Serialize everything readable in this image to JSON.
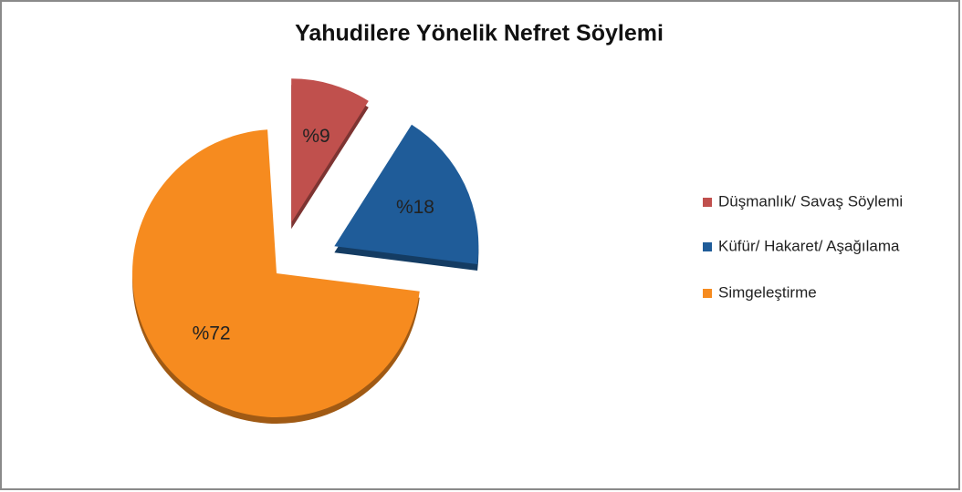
{
  "chart_data": {
    "type": "pie",
    "title": "Yahudilere Yönelik Nefret Söylemi",
    "categories": [
      "Düşmanlık/ Savaş Söylemi",
      "Küfür/ Hakaret/ Aşağılama",
      "Simgeleştirme"
    ],
    "values": [
      9,
      18,
      72
    ],
    "value_labels": [
      "%9",
      "%18",
      "%72"
    ],
    "colors": [
      "#c0504d",
      "#1f5c99",
      "#f68b1f"
    ],
    "legend": "right"
  }
}
